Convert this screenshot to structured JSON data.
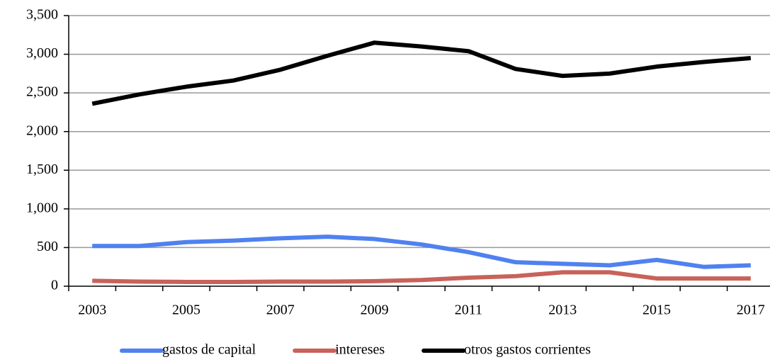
{
  "chart_data": {
    "type": "line",
    "categories": [
      "2003",
      null,
      "2005",
      null,
      "2007",
      null,
      "2009",
      null,
      "2011",
      null,
      "2013",
      null,
      "2015",
      null,
      "2017"
    ],
    "series": [
      {
        "name": "gastos de capital",
        "color": "#4f81f0",
        "values": [
          520,
          520,
          570,
          590,
          620,
          640,
          610,
          540,
          440,
          310,
          290,
          270,
          340,
          250,
          270
        ]
      },
      {
        "name": "intereses",
        "color": "#c8625a",
        "values": [
          70,
          60,
          55,
          55,
          60,
          60,
          65,
          80,
          110,
          130,
          180,
          180,
          100,
          100,
          100
        ]
      },
      {
        "name": "otros gastos corrientes",
        "color": "#000000",
        "values": [
          2360,
          2480,
          2580,
          2660,
          2800,
          2980,
          3150,
          3100,
          3040,
          2810,
          2720,
          2750,
          2840,
          2900,
          2950
        ]
      }
    ],
    "ylim": [
      0,
      3500
    ],
    "yticks": [
      0,
      500,
      {
        "value": 1000,
        "label": "1,000"
      },
      {
        "value": 1500,
        "label": "1,500"
      },
      {
        "value": 2000,
        "label": "2,000"
      },
      {
        "value": 2500,
        "label": "2,500"
      },
      {
        "value": 3000,
        "label": "3,000"
      },
      {
        "value": 3500,
        "label": "3,500"
      }
    ],
    "grid": true,
    "legend": "bottom"
  }
}
